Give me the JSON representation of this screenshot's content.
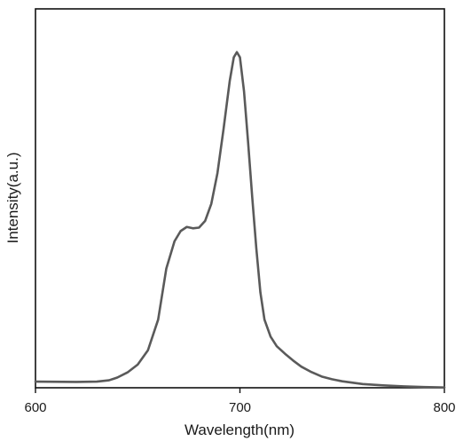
{
  "chart_data": {
    "type": "line",
    "title": "",
    "xlabel": "Wavelength(nm)",
    "ylabel": "Intensity(a.u.)",
    "xlim": [
      600,
      800
    ],
    "ylim": [
      0,
      1.0
    ],
    "x_ticks": [
      600,
      700,
      800
    ],
    "x_tick_labels": [
      "600",
      "700",
      "800"
    ],
    "y_tick_labels_shown": false,
    "grid": false,
    "legend": "none",
    "line_color": "#5a5a5a",
    "series": [
      {
        "x": [
          600,
          620,
          630,
          636,
          640,
          645,
          650,
          655,
          660,
          664,
          668,
          671,
          674,
          677,
          680,
          683,
          686,
          689,
          692,
          695,
          697,
          698.5,
          700,
          702,
          704,
          706,
          708,
          710,
          712,
          715,
          718,
          722,
          726,
          730,
          735,
          740,
          745,
          750,
          760,
          770,
          780,
          790,
          800
        ],
        "y": [
          0.018,
          0.017,
          0.018,
          0.022,
          0.03,
          0.045,
          0.068,
          0.11,
          0.2,
          0.35,
          0.43,
          0.46,
          0.472,
          0.468,
          0.47,
          0.49,
          0.54,
          0.63,
          0.76,
          0.9,
          0.97,
          0.985,
          0.97,
          0.87,
          0.72,
          0.56,
          0.41,
          0.28,
          0.2,
          0.15,
          0.122,
          0.1,
          0.08,
          0.062,
          0.046,
          0.033,
          0.025,
          0.019,
          0.011,
          0.007,
          0.004,
          0.002,
          0.001
        ]
      }
    ]
  }
}
